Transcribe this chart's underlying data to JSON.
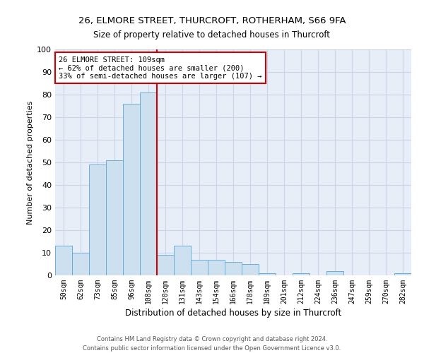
{
  "title_line1": "26, ELMORE STREET, THURCROFT, ROTHERHAM, S66 9FA",
  "title_line2": "Size of property relative to detached houses in Thurcroft",
  "xlabel": "Distribution of detached houses by size in Thurcroft",
  "ylabel": "Number of detached properties",
  "categories": [
    "50sqm",
    "62sqm",
    "73sqm",
    "85sqm",
    "96sqm",
    "108sqm",
    "120sqm",
    "131sqm",
    "143sqm",
    "154sqm",
    "166sqm",
    "178sqm",
    "189sqm",
    "201sqm",
    "212sqm",
    "224sqm",
    "236sqm",
    "247sqm",
    "259sqm",
    "270sqm",
    "282sqm"
  ],
  "values": [
    13,
    10,
    49,
    51,
    76,
    81,
    9,
    13,
    7,
    7,
    6,
    5,
    1,
    0,
    1,
    0,
    2,
    0,
    0,
    0,
    1
  ],
  "bar_color": "#cce0f0",
  "bar_edge_color": "#6aaed6",
  "property_line_x": 5.5,
  "annotation_text_line1": "26 ELMORE STREET: 109sqm",
  "annotation_text_line2": "← 62% of detached houses are smaller (200)",
  "annotation_text_line3": "33% of semi-detached houses are larger (107) →",
  "annotation_box_color": "#ffffff",
  "annotation_box_edge": "#cc0000",
  "vline_color": "#cc0000",
  "grid_color": "#c8d4e8",
  "background_color": "#e8eef8",
  "ylim": [
    0,
    100
  ],
  "yticks": [
    0,
    10,
    20,
    30,
    40,
    50,
    60,
    70,
    80,
    90,
    100
  ],
  "footer_line1": "Contains HM Land Registry data © Crown copyright and database right 2024.",
  "footer_line2": "Contains public sector information licensed under the Open Government Licence v3.0."
}
